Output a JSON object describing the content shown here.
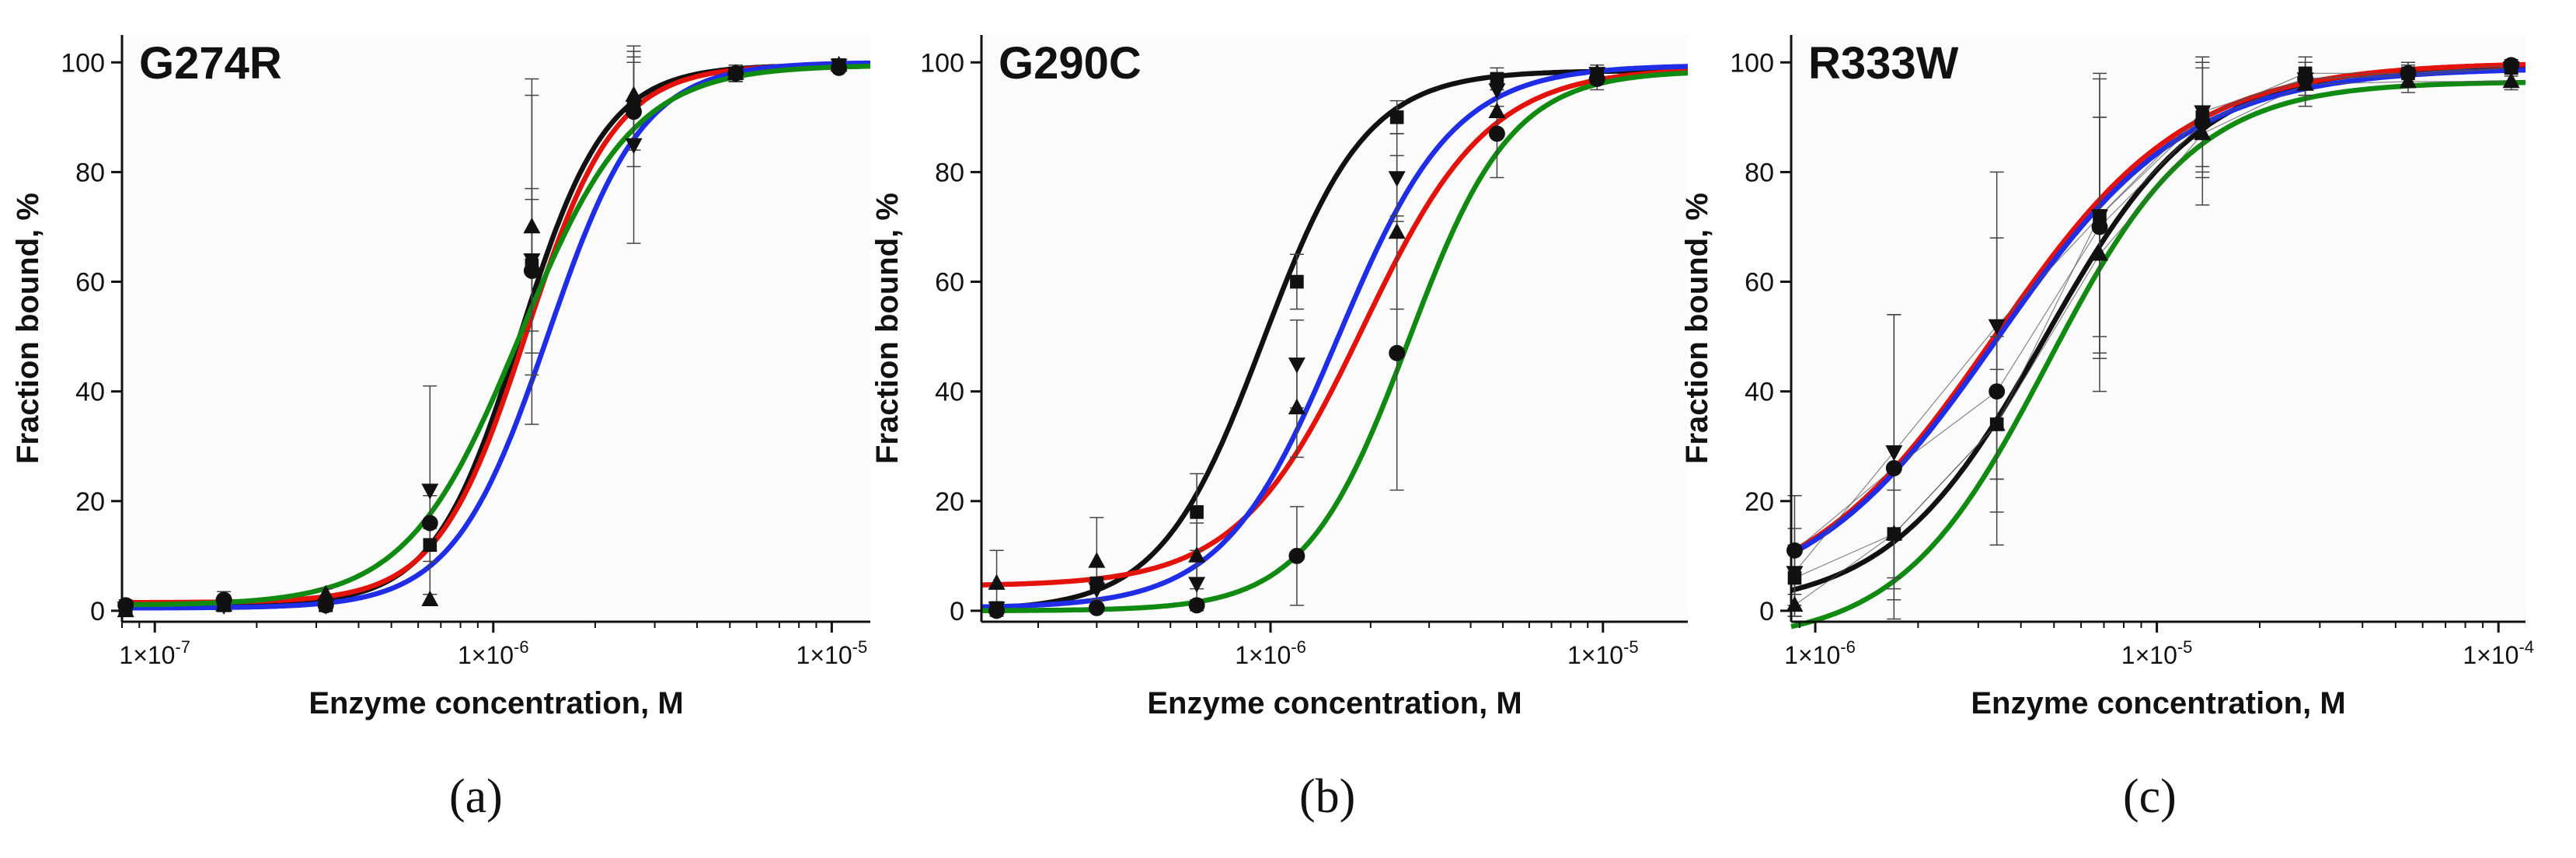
{
  "chart_data": [
    {
      "type": "line",
      "panel_label": "(a)",
      "title": "G274R",
      "xlabel": "Enzyme concentration, M",
      "ylabel": "Fraction bound, %",
      "xscale": "log",
      "xlim": [
        8e-08,
        1.3e-05
      ],
      "ylim": [
        -2,
        105
      ],
      "x_tick_values": [
        1e-07,
        1e-06,
        1e-05
      ],
      "x_tick_labels": [
        "1×10⁻⁷",
        "1×10⁻⁶",
        "1×10⁻⁵"
      ],
      "y_tick_values": [
        0,
        20,
        40,
        60,
        80,
        100
      ],
      "y_tick_labels": [
        "0",
        "20",
        "40",
        "60",
        "80",
        "100"
      ],
      "series": [
        {
          "name": "black",
          "color": "#111111",
          "marker": "square",
          "fit": {
            "bottom": 1,
            "top": 99.5,
            "ec50": 1.2e-06,
            "hill": 3.4
          },
          "x": [
            8.2e-08,
            1.6e-07,
            3.2e-07,
            6.5e-07,
            1.3e-06,
            2.6e-06,
            5.2e-06,
            1.05e-05
          ],
          "y": [
            0.5,
            1,
            1,
            12,
            63,
            92,
            98,
            99.5
          ],
          "err": [
            1,
            1,
            1,
            3,
            12,
            8,
            1.5,
            0.5
          ]
        },
        {
          "name": "red",
          "color": "#e3120b",
          "marker": "circle",
          "fit": {
            "bottom": 1.5,
            "top": 99.5,
            "ec50": 1.25e-06,
            "hill": 3.3
          },
          "x": [
            8.2e-08,
            1.6e-07,
            3.2e-07,
            6.5e-07,
            1.3e-06,
            2.6e-06,
            5.2e-06,
            1.05e-05
          ],
          "y": [
            1,
            2,
            1,
            16,
            62,
            91,
            98,
            99
          ],
          "err": [
            1,
            1.5,
            1,
            5,
            15,
            10,
            1.5,
            0.5
          ]
        },
        {
          "name": "blue",
          "color": "#1f2ee6",
          "marker": "triangle-down",
          "fit": {
            "bottom": 0.5,
            "top": 100,
            "ec50": 1.45e-06,
            "hill": 3.1
          },
          "x": [
            8.2e-08,
            1.6e-07,
            3.2e-07,
            6.5e-07,
            1.3e-06,
            2.6e-06,
            5.2e-06,
            1.05e-05
          ],
          "y": [
            0.5,
            1,
            1,
            22,
            64,
            85,
            98,
            99.5
          ],
          "err": [
            0.5,
            1,
            1,
            19,
            30,
            18,
            1.5,
            0.5
          ]
        },
        {
          "name": "green",
          "color": "#108a10",
          "marker": "triangle-up",
          "fit": {
            "bottom": 1,
            "top": 99.5,
            "ec50": 1.2e-06,
            "hill": 2.6
          },
          "x": [
            8.2e-08,
            1.6e-07,
            3.2e-07,
            6.5e-07,
            1.3e-06,
            2.6e-06,
            5.2e-06,
            1.05e-05
          ],
          "y": [
            0,
            1,
            3,
            2,
            70,
            94,
            98,
            99.5
          ],
          "err": [
            0.5,
            1,
            1,
            1,
            27,
            8,
            1.5,
            0.5
          ]
        }
      ]
    },
    {
      "type": "line",
      "panel_label": "(b)",
      "title": "G290C",
      "xlabel": "Enzyme concentration, M",
      "ylabel": "Fraction bound, %",
      "xscale": "log",
      "xlim": [
        1.35e-07,
        1.8e-05
      ],
      "ylim": [
        -2,
        105
      ],
      "x_tick_values": [
        1e-06,
        1e-05
      ],
      "x_tick_labels": [
        "1×10⁻⁶",
        "1×10⁻⁵"
      ],
      "y_tick_values": [
        0,
        20,
        40,
        60,
        80,
        100
      ],
      "y_tick_labels": [
        "0",
        "20",
        "40",
        "60",
        "80",
        "100"
      ],
      "series": [
        {
          "name": "black",
          "color": "#111111",
          "marker": "square",
          "fit": {
            "bottom": 0,
            "top": 98.5,
            "ec50": 9.5e-07,
            "hill": 2.8
          },
          "x": [
            1.5e-07,
            3e-07,
            6e-07,
            1.2e-06,
            2.4e-06,
            4.8e-06,
            9.6e-06
          ],
          "y": [
            0.5,
            5,
            18,
            60,
            90,
            97,
            97.5
          ],
          "err": [
            1,
            3,
            7,
            5,
            3,
            2,
            1.5
          ]
        },
        {
          "name": "red",
          "color": "#e3120b",
          "marker": "triangle-up",
          "fit": {
            "bottom": 4.5,
            "top": 99,
            "ec50": 1.9e-06,
            "hill": 2.3
          },
          "x": [
            1.5e-07,
            3e-07,
            6e-07,
            1.2e-06,
            2.4e-06,
            4.8e-06,
            9.6e-06
          ],
          "y": [
            5,
            9,
            10,
            37,
            69,
            91,
            98
          ],
          "err": [
            6,
            8,
            6,
            9,
            14,
            4,
            1.5
          ]
        },
        {
          "name": "blue",
          "color": "#1f2ee6",
          "marker": "triangle-down",
          "fit": {
            "bottom": 0.5,
            "top": 99.5,
            "ec50": 1.6e-06,
            "hill": 2.5
          },
          "x": [
            1.5e-07,
            3e-07,
            6e-07,
            1.2e-06,
            2.4e-06,
            4.8e-06,
            9.6e-06
          ],
          "y": [
            0.5,
            4,
            5,
            45,
            79,
            95,
            98
          ],
          "err": [
            1,
            2,
            4,
            8,
            8,
            3,
            1
          ]
        },
        {
          "name": "green",
          "color": "#108a10",
          "marker": "circle",
          "fit": {
            "bottom": 0,
            "top": 98.5,
            "ec50": 2.6e-06,
            "hill": 2.8
          },
          "x": [
            1.5e-07,
            3e-07,
            6e-07,
            1.2e-06,
            2.4e-06,
            4.8e-06,
            9.6e-06
          ],
          "y": [
            0,
            0.5,
            1,
            10,
            47,
            87,
            97
          ],
          "err": [
            0.5,
            0.5,
            1,
            9,
            25,
            8,
            2
          ]
        }
      ]
    },
    {
      "type": "line",
      "panel_label": "(c)",
      "title": "R333W",
      "xlabel": "Enzyme concentration, M",
      "ylabel": "Fraction bound, %",
      "xscale": "log",
      "xlim": [
        8.5e-07,
        0.00012
      ],
      "ylim": [
        -2,
        105
      ],
      "x_tick_values": [
        1e-05,
        0.0001
      ],
      "x_tick_labels": [
        "1×10⁻⁵",
        "1×10⁻⁴"
      ],
      "x_extra_tick_labels": [
        "1×10⁻⁶"
      ],
      "y_tick_values": [
        0,
        20,
        40,
        60,
        80,
        100
      ],
      "y_tick_labels": [
        "0",
        "20",
        "40",
        "60",
        "80",
        "100"
      ],
      "series": [
        {
          "name": "black",
          "color": "#111111",
          "marker": "square",
          "fit": {
            "bottom": 0,
            "top": 99.5,
            "ec50": 4.7e-06,
            "hill": 1.9
          },
          "x": [
            8.7e-07,
            1.7e-06,
            3.4e-06,
            6.8e-06,
            1.36e-05,
            2.72e-05,
            5.44e-05,
            0.000109
          ],
          "y": [
            6,
            14,
            34,
            72,
            90,
            98,
            98,
            99
          ],
          "err": [
            6,
            8,
            10,
            25,
            10,
            3,
            2,
            1.5
          ]
        },
        {
          "name": "red",
          "color": "#e3120b",
          "marker": "circle",
          "fit": {
            "bottom": 0,
            "top": 100,
            "ec50": 3.35e-06,
            "hill": 1.55
          },
          "x": [
            8.7e-07,
            1.7e-06,
            3.4e-06,
            6.8e-06,
            1.36e-05,
            2.72e-05,
            5.44e-05,
            0.000109
          ],
          "y": [
            11,
            26,
            40,
            70,
            89,
            97,
            98,
            99.5
          ],
          "err": [
            10,
            28,
            28,
            20,
            10,
            3,
            2,
            1
          ]
        },
        {
          "name": "blue",
          "color": "#1f2ee6",
          "marker": "triangle-down",
          "fit": {
            "bottom": 0,
            "top": 99,
            "ec50": 3.4e-06,
            "hill": 1.55
          },
          "x": [
            8.7e-07,
            1.7e-06,
            3.4e-06,
            6.8e-06,
            1.36e-05,
            2.72e-05,
            5.44e-05,
            0.000109
          ],
          "y": [
            7,
            29,
            52,
            72,
            91,
            97,
            97.5,
            99
          ],
          "err": [
            8,
            25,
            28,
            26,
            10,
            3,
            2,
            1
          ]
        },
        {
          "name": "green",
          "color": "#108a10",
          "marker": "triangle-up",
          "fit": {
            "bottom": -6,
            "top": 96.5,
            "ec50": 4.8e-06,
            "hill": 2.0
          },
          "x": [
            8.7e-07,
            1.7e-06,
            3.4e-06,
            6.8e-06,
            1.36e-05,
            2.72e-05,
            5.44e-05,
            0.000109
          ],
          "y": [
            1,
            14,
            34,
            65,
            87,
            96,
            96.5,
            96.5
          ],
          "err": [
            2,
            12,
            16,
            25,
            13,
            4,
            2,
            1.5
          ]
        }
      ]
    }
  ]
}
